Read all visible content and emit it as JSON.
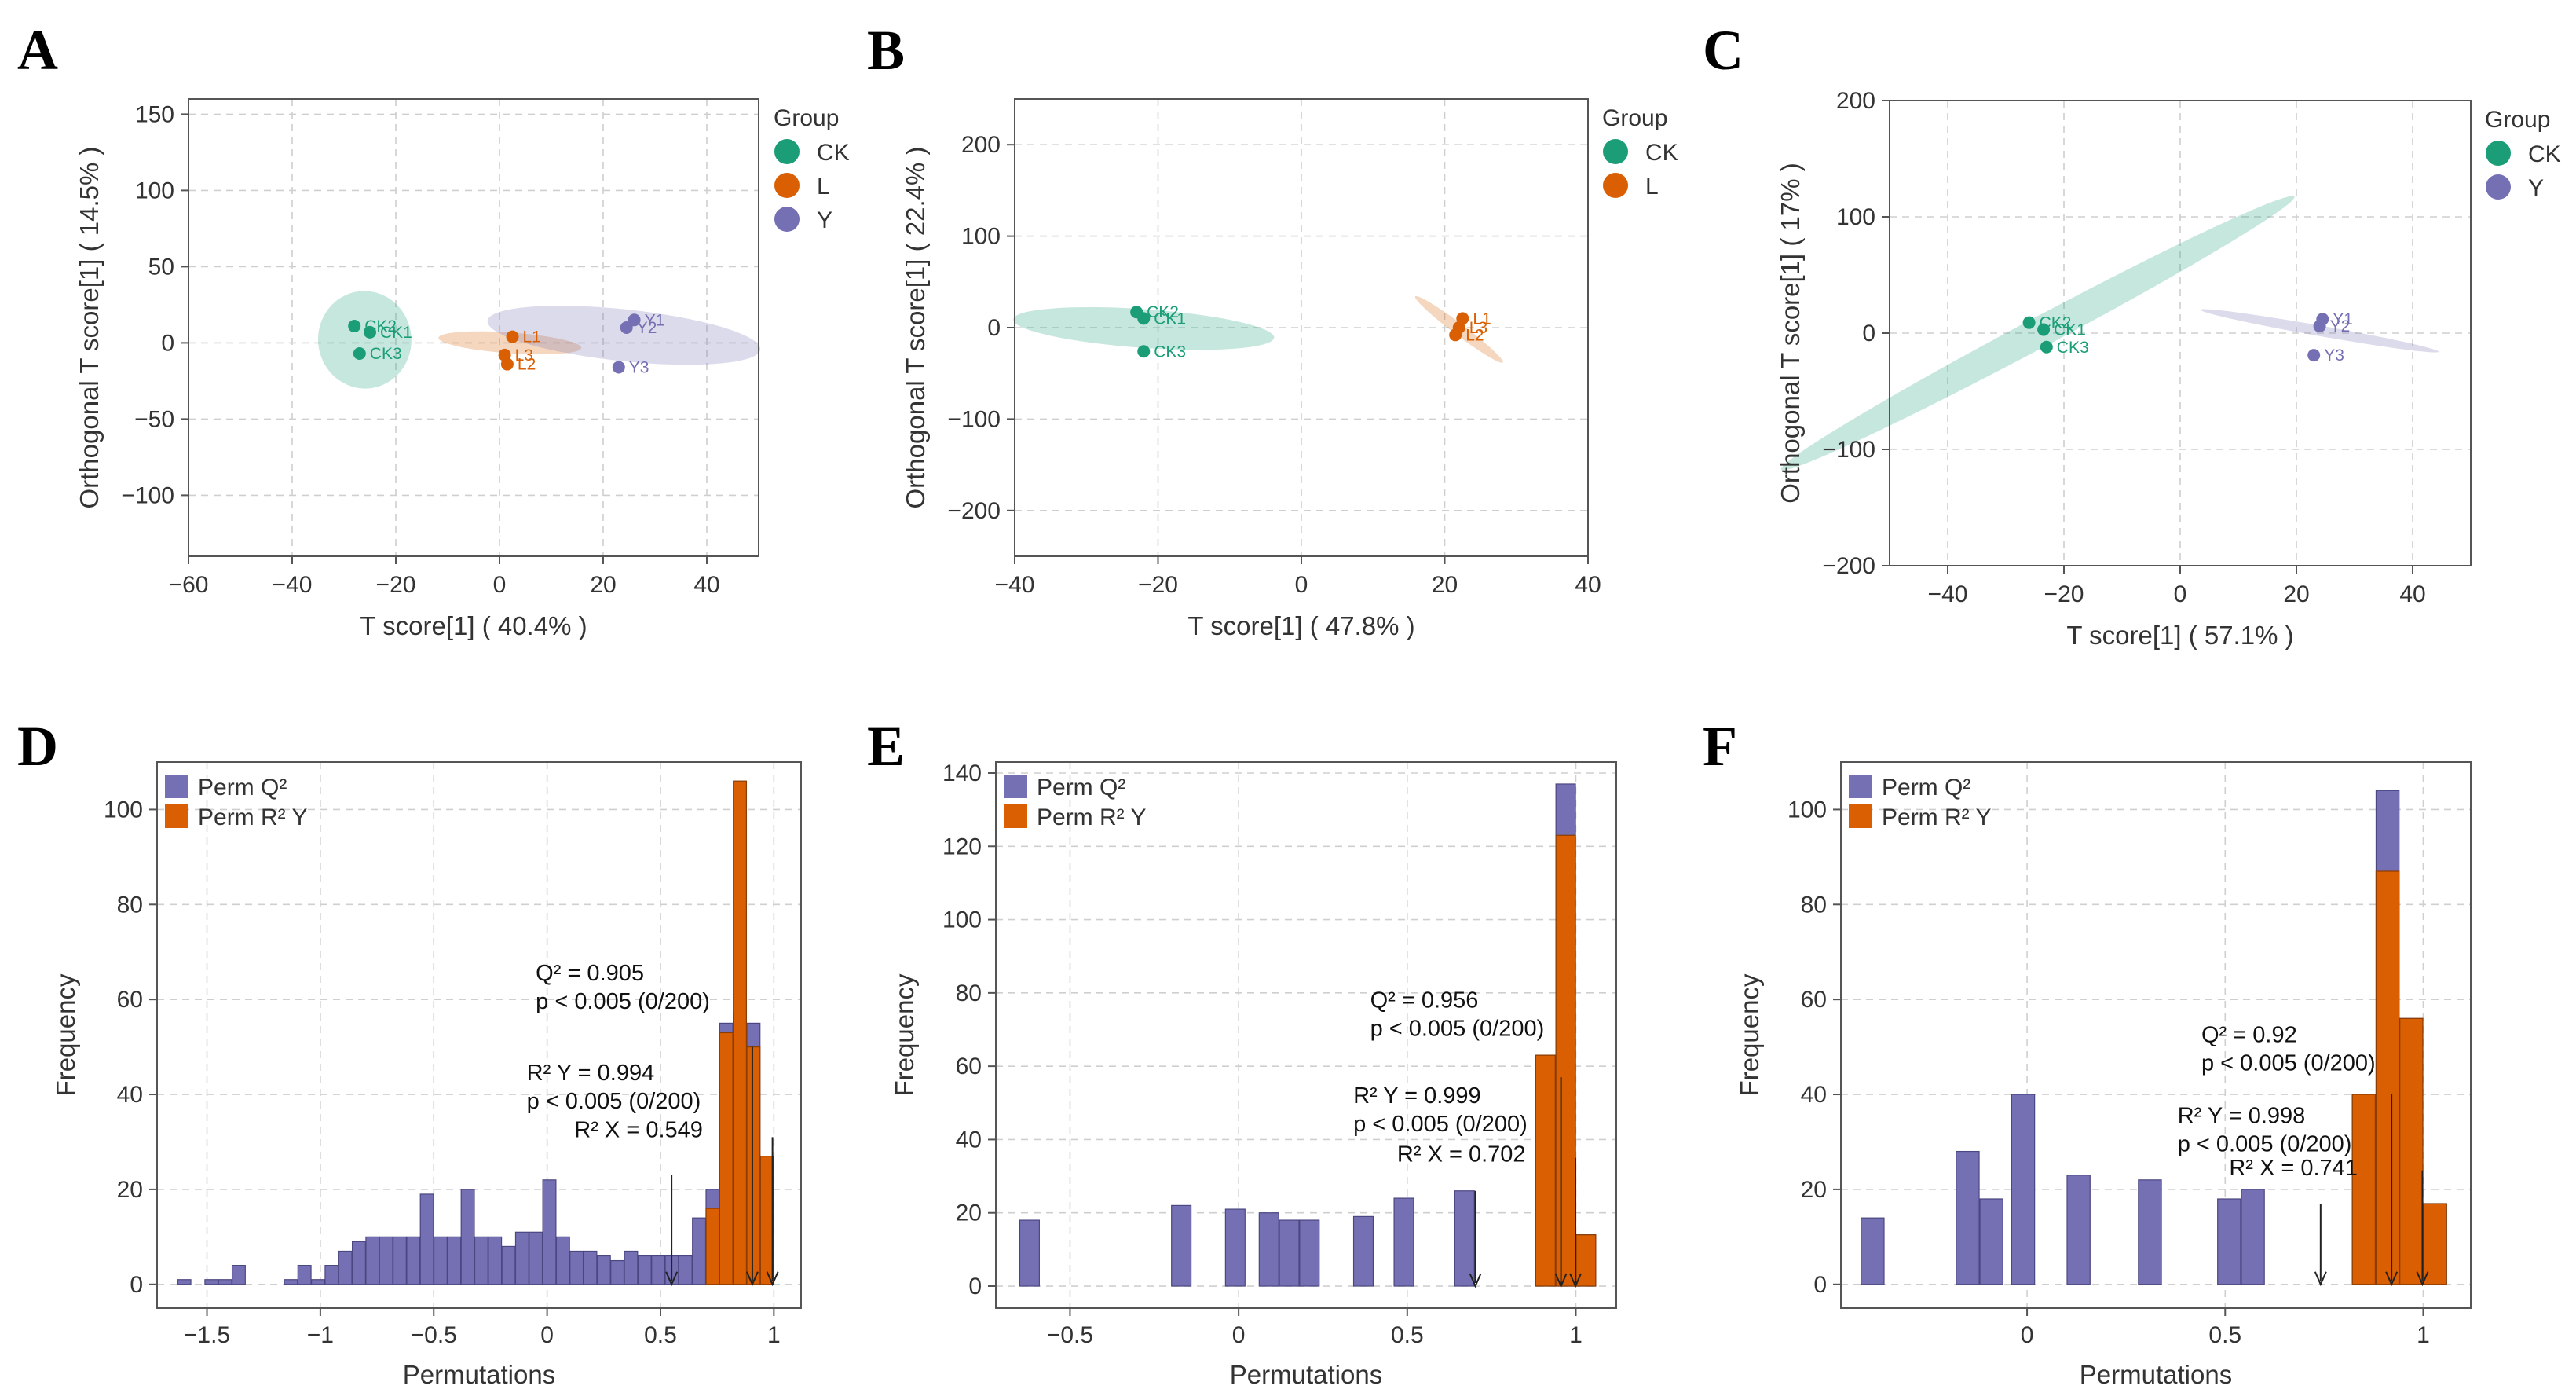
{
  "colors": {
    "CK": "#1b9e77",
    "L": "#d95f02",
    "Y": "#7570b3",
    "Q2": "#7570b3",
    "R2Y": "#d95f02"
  },
  "opls_panels": [
    {
      "letter": "A",
      "xlabel": "T score[1] ( 40.4% )",
      "ylabel": "Orthogonal T score[1] ( 14.5% )",
      "xlim": [
        -60,
        50
      ],
      "ylim": [
        -140,
        160
      ],
      "xticks": [
        -60,
        -40,
        -20,
        0,
        20,
        40
      ],
      "yticks": [
        -100,
        -50,
        0,
        50,
        100,
        150
      ],
      "legend_title": "Group",
      "groups": [
        "CK",
        "L",
        "Y"
      ],
      "ellipses": [
        {
          "group": "CK",
          "cx": -26,
          "cy": 2,
          "rx": 32,
          "ry": 9,
          "angle": -6
        },
        {
          "group": "L",
          "cx": 2,
          "cy": 0,
          "rx": 47,
          "ry": 2,
          "angle": -86
        },
        {
          "group": "Y",
          "cx": 24,
          "cy": 5,
          "rx": 90,
          "ry": 5,
          "angle": -84
        }
      ],
      "points": [
        {
          "label": "CK2",
          "group": "CK",
          "x": -28,
          "y": 11
        },
        {
          "label": "CK1",
          "group": "CK",
          "x": -25,
          "y": 7
        },
        {
          "label": "CK3",
          "group": "CK",
          "x": -27,
          "y": -7
        },
        {
          "label": "L1",
          "group": "L",
          "x": 2.5,
          "y": 4
        },
        {
          "label": "L3",
          "group": "L",
          "x": 1,
          "y": -8
        },
        {
          "label": "L2",
          "group": "L",
          "x": 1.5,
          "y": -14
        },
        {
          "label": "Y1",
          "group": "Y",
          "x": 26,
          "y": 15
        },
        {
          "label": "Y2",
          "group": "Y",
          "x": 24.5,
          "y": 10
        },
        {
          "label": "Y3",
          "group": "Y",
          "x": 23,
          "y": -16
        }
      ]
    },
    {
      "letter": "B",
      "xlabel": "T score[1] ( 47.8% )",
      "ylabel": "Orthogonal T score[1] ( 22.4% )",
      "xlim": [
        -40,
        40
      ],
      "ylim": [
        -250,
        250
      ],
      "xticks": [
        -40,
        -20,
        0,
        20,
        40
      ],
      "yticks": [
        -200,
        -100,
        0,
        100,
        200
      ],
      "legend_title": "Group",
      "groups": [
        "CK",
        "L"
      ],
      "ellipses": [
        {
          "group": "CK",
          "cx": -22,
          "cy": -1,
          "rx": 143,
          "ry": 2.7,
          "angle": -86
        },
        {
          "group": "L",
          "cx": 22,
          "cy": -2,
          "rx": 60,
          "ry": 0.8,
          "angle": -53
        }
      ],
      "points": [
        {
          "label": "CK2",
          "group": "CK",
          "x": -23,
          "y": 17
        },
        {
          "label": "CK1",
          "group": "CK",
          "x": -22,
          "y": 10
        },
        {
          "label": "CK3",
          "group": "CK",
          "x": -22,
          "y": -26
        },
        {
          "label": "L1",
          "group": "L",
          "x": 22.5,
          "y": 10
        },
        {
          "label": "L3",
          "group": "L",
          "x": 22,
          "y": 0
        },
        {
          "label": "L2",
          "group": "L",
          "x": 21.5,
          "y": -8
        }
      ]
    },
    {
      "letter": "C",
      "xlabel": "T score[1] ( 57.1% )",
      "ylabel": "Orthogonal T score[1] ( 17% )",
      "xlim": [
        -50,
        50
      ],
      "ylim": [
        -200,
        200
      ],
      "xticks": [
        -40,
        -20,
        0,
        20,
        40
      ],
      "yticks": [
        -200,
        -100,
        0,
        100,
        200
      ],
      "legend_title": "Group",
      "groups": [
        "CK",
        "Y"
      ],
      "ellipses": [
        {
          "group": "CK",
          "cx": -24.5,
          "cy": 0,
          "rx": 13,
          "ry": 50,
          "angle": -28
        },
        {
          "group": "Y",
          "cx": 24,
          "cy": 2,
          "rx": 104,
          "ry": 0.9,
          "angle": -80
        }
      ],
      "points": [
        {
          "label": "CK2",
          "group": "CK",
          "x": -26,
          "y": 9
        },
        {
          "label": "CK1",
          "group": "CK",
          "x": -23.5,
          "y": 3
        },
        {
          "label": "CK3",
          "group": "CK",
          "x": -23,
          "y": -12
        },
        {
          "label": "Y1",
          "group": "Y",
          "x": 24.5,
          "y": 12
        },
        {
          "label": "Y2",
          "group": "Y",
          "x": 24,
          "y": 6
        },
        {
          "label": "Y3",
          "group": "Y",
          "x": 23,
          "y": -19
        }
      ]
    }
  ],
  "perm_panels": [
    {
      "letter": "D",
      "xlabel": "Permutations",
      "ylabel": "Frequency",
      "xlim": [
        -1.72,
        1.12
      ],
      "ylim": [
        -5,
        110
      ],
      "xticks": [
        -1.5,
        -1,
        -0.5,
        0,
        0.5,
        1
      ],
      "yticks": [
        0,
        20,
        40,
        60,
        80,
        100
      ],
      "bin_width": 0.058,
      "legend": [
        "Perm Q²",
        "Perm R² Y"
      ],
      "q2_bars": [
        [
          -1.6,
          1
        ],
        [
          -1.48,
          1
        ],
        [
          -1.42,
          1
        ],
        [
          -1.36,
          4
        ],
        [
          -1.13,
          1
        ],
        [
          -1.07,
          4
        ],
        [
          -1.01,
          1
        ],
        [
          -0.95,
          4
        ],
        [
          -0.89,
          7
        ],
        [
          -0.83,
          9
        ],
        [
          -0.77,
          10
        ],
        [
          -0.71,
          10
        ],
        [
          -0.65,
          10
        ],
        [
          -0.59,
          10
        ],
        [
          -0.53,
          19
        ],
        [
          -0.47,
          10
        ],
        [
          -0.41,
          10
        ],
        [
          -0.35,
          20
        ],
        [
          -0.29,
          10
        ],
        [
          -0.23,
          10
        ],
        [
          -0.17,
          8
        ],
        [
          -0.11,
          11
        ],
        [
          -0.05,
          11
        ],
        [
          0.01,
          22
        ],
        [
          0.07,
          10
        ],
        [
          0.13,
          7
        ],
        [
          0.19,
          7
        ],
        [
          0.25,
          6
        ],
        [
          0.31,
          5
        ],
        [
          0.37,
          7
        ],
        [
          0.43,
          6
        ],
        [
          0.49,
          6
        ],
        [
          0.55,
          6
        ],
        [
          0.61,
          6
        ],
        [
          0.67,
          14
        ],
        [
          0.73,
          20
        ],
        [
          0.79,
          55
        ],
        [
          0.85,
          57
        ],
        [
          0.91,
          55
        ],
        [
          0.97,
          22
        ]
      ],
      "r2y_bars": [
        [
          0.73,
          16
        ],
        [
          0.79,
          53
        ],
        [
          0.85,
          106
        ],
        [
          0.91,
          50
        ],
        [
          0.97,
          27
        ]
      ],
      "annotations": [
        {
          "lines": [
            "Q² = 0.905",
            "p < 0.005 (0/200)"
          ],
          "x": 0.905,
          "text_x": -0.05,
          "text_y": 64,
          "arrow_top": 50
        },
        {
          "lines": [
            "R² Y = 0.994",
            "p < 0.005 (0/200)"
          ],
          "x": 0.994,
          "text_x": -0.09,
          "text_y": 43,
          "arrow_top": 31
        },
        {
          "lines": [
            "R² X = 0.549"
          ],
          "x": 0.549,
          "text_x": 0.12,
          "text_y": 31,
          "arrow_top": 23
        }
      ]
    },
    {
      "letter": "E",
      "xlabel": "Permutations",
      "ylabel": "Frequency",
      "xlim": [
        -0.72,
        1.12
      ],
      "ylim": [
        -6,
        143
      ],
      "xticks": [
        -0.5,
        0,
        0.5,
        1
      ],
      "yticks": [
        0,
        20,
        40,
        60,
        80,
        100,
        120,
        140
      ],
      "bin_width": 0.058,
      "legend": [
        "Perm Q²",
        "Perm R² Y"
      ],
      "q2_bars": [
        [
          -0.62,
          18
        ],
        [
          -0.17,
          22
        ],
        [
          -0.01,
          21
        ],
        [
          0.09,
          20
        ],
        [
          0.15,
          18
        ],
        [
          0.21,
          18
        ],
        [
          0.37,
          19
        ],
        [
          0.49,
          24
        ],
        [
          0.67,
          26
        ],
        [
          0.91,
          63
        ],
        [
          0.97,
          137
        ],
        [
          1.03,
          14
        ]
      ],
      "r2y_bars": [
        [
          0.91,
          63
        ],
        [
          0.97,
          123
        ],
        [
          1.03,
          14
        ]
      ],
      "annotations": [
        {
          "lines": [
            "Q² = 0.956",
            "p < 0.005 (0/200)"
          ],
          "x": 0.956,
          "text_x": 0.39,
          "text_y": 76,
          "arrow_top": 57
        },
        {
          "lines": [
            "R² Y = 0.999",
            "p < 0.005 (0/200)"
          ],
          "x": 0.999,
          "text_x": 0.34,
          "text_y": 50,
          "arrow_top": 35
        },
        {
          "lines": [
            "R² X = 0.702"
          ],
          "x": 0.702,
          "text_x": 0.47,
          "text_y": 34,
          "arrow_top": 26
        }
      ]
    },
    {
      "letter": "F",
      "xlabel": "Permutations",
      "ylabel": "Frequency",
      "xlim": [
        -0.47,
        1.12
      ],
      "ylim": [
        -5,
        110
      ],
      "xticks": [
        0,
        0.5,
        1
      ],
      "yticks": [
        0,
        20,
        40,
        60,
        80,
        100
      ],
      "bin_width": 0.058,
      "legend": [
        "Perm Q²",
        "Perm R² Y"
      ],
      "q2_bars": [
        [
          -0.39,
          14
        ],
        [
          -0.15,
          28
        ],
        [
          -0.09,
          18
        ],
        [
          -0.01,
          40
        ],
        [
          0.13,
          23
        ],
        [
          0.31,
          22
        ],
        [
          0.51,
          18
        ],
        [
          0.57,
          20
        ],
        [
          0.85,
          40
        ],
        [
          0.91,
          104
        ],
        [
          0.97,
          56
        ],
        [
          1.03,
          17
        ]
      ],
      "r2y_bars": [
        [
          0.85,
          40
        ],
        [
          0.91,
          87
        ],
        [
          0.97,
          56
        ],
        [
          1.03,
          17
        ]
      ],
      "annotations": [
        {
          "lines": [
            "Q² = 0.92",
            "p < 0.005 (0/200)"
          ],
          "x": 0.92,
          "text_x": 0.44,
          "text_y": 51,
          "arrow_top": 40
        },
        {
          "lines": [
            "R² Y = 0.998",
            "p < 0.005 (0/200)"
          ],
          "x": 0.998,
          "text_x": 0.38,
          "text_y": 34,
          "arrow_top": 24
        },
        {
          "lines": [
            "R² X = 0.741"
          ],
          "x": 0.741,
          "text_x": 0.51,
          "text_y": 23,
          "arrow_top": 17
        }
      ]
    }
  ]
}
